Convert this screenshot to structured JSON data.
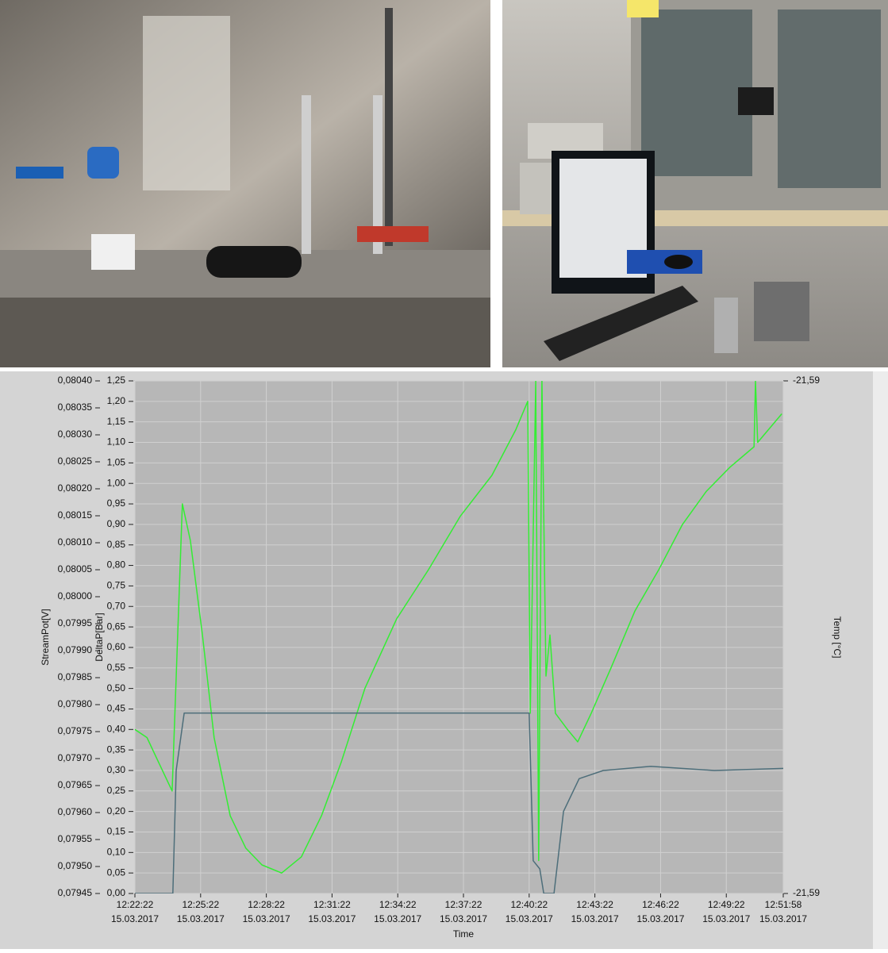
{
  "chart_data": {
    "type": "line",
    "xlabel": "Time",
    "ylabel": "StreamPot[V]",
    "y2label": "DeltaP[Bar]",
    "y3label": "Temp [°C]",
    "xlim": [
      "12:22:22",
      "12:51:58"
    ],
    "xticks": [
      {
        "value": "12:22:22",
        "date": "15.03.2017"
      },
      {
        "value": "12:25:22",
        "date": "15.03.2017"
      },
      {
        "value": "12:28:22",
        "date": "15.03.2017"
      },
      {
        "value": "12:31:22",
        "date": "15.03.2017"
      },
      {
        "value": "12:34:22",
        "date": "15.03.2017"
      },
      {
        "value": "12:37:22",
        "date": "15.03.2017"
      },
      {
        "value": "12:40:22",
        "date": "15.03.2017"
      },
      {
        "value": "12:43:22",
        "date": "15.03.2017"
      },
      {
        "value": "12:46:22",
        "date": "15.03.2017"
      },
      {
        "value": "12:49:22",
        "date": "15.03.2017"
      },
      {
        "value": "12:51:58",
        "date": "15.03.2017"
      }
    ],
    "ylim": [
      0.07945,
      0.0804
    ],
    "yticks": [
      {
        "value": 0.07945,
        "label": "0,07945"
      },
      {
        "value": 0.0795,
        "label": "0,07950"
      },
      {
        "value": 0.07955,
        "label": "0,07955"
      },
      {
        "value": 0.0796,
        "label": "0,07960"
      },
      {
        "value": 0.07965,
        "label": "0,07965"
      },
      {
        "value": 0.0797,
        "label": "0,07970"
      },
      {
        "value": 0.07975,
        "label": "0,07975"
      },
      {
        "value": 0.0798,
        "label": "0,07980"
      },
      {
        "value": 0.07985,
        "label": "0,07985"
      },
      {
        "value": 0.0799,
        "label": "0,07990"
      },
      {
        "value": 0.07995,
        "label": "0,07995"
      },
      {
        "value": 0.08,
        "label": "0,08000"
      },
      {
        "value": 0.08005,
        "label": "0,08005"
      },
      {
        "value": 0.0801,
        "label": "0,08010"
      },
      {
        "value": 0.08015,
        "label": "0,08015"
      },
      {
        "value": 0.0802,
        "label": "0,08020"
      },
      {
        "value": 0.08025,
        "label": "0,08025"
      },
      {
        "value": 0.0803,
        "label": "0,08030"
      },
      {
        "value": 0.08035,
        "label": "0,08035"
      },
      {
        "value": 0.0804,
        "label": "0,08040"
      }
    ],
    "y2lim": [
      0,
      1.25
    ],
    "y2ticks": [
      {
        "value": 0,
        "label": "0,00"
      },
      {
        "value": 0.05,
        "label": "0,05"
      },
      {
        "value": 0.1,
        "label": "0,10"
      },
      {
        "value": 0.15,
        "label": "0,15"
      },
      {
        "value": 0.2,
        "label": "0,20"
      },
      {
        "value": 0.25,
        "label": "0,25"
      },
      {
        "value": 0.3,
        "label": "0,30"
      },
      {
        "value": 0.35,
        "label": "0,35"
      },
      {
        "value": 0.4,
        "label": "0,40"
      },
      {
        "value": 0.45,
        "label": "0,45"
      },
      {
        "value": 0.5,
        "label": "0,50"
      },
      {
        "value": 0.55,
        "label": "0,55"
      },
      {
        "value": 0.6,
        "label": "0,60"
      },
      {
        "value": 0.65,
        "label": "0,65"
      },
      {
        "value": 0.7,
        "label": "0,70"
      },
      {
        "value": 0.75,
        "label": "0,75"
      },
      {
        "value": 0.8,
        "label": "0,80"
      },
      {
        "value": 0.85,
        "label": "0,85"
      },
      {
        "value": 0.9,
        "label": "0,90"
      },
      {
        "value": 0.95,
        "label": "0,95"
      },
      {
        "value": 1,
        "label": "1,00"
      },
      {
        "value": 1.05,
        "label": "1,05"
      },
      {
        "value": 1.1,
        "label": "1,10"
      },
      {
        "value": 1.15,
        "label": "1,15"
      },
      {
        "value": 1.2,
        "label": "1,20"
      },
      {
        "value": 1.25,
        "label": "1,25"
      }
    ],
    "y3lim": [
      -21.59,
      -21.59
    ],
    "y3ticks": [
      {
        "value": -21.59,
        "label": "-21,59"
      },
      {
        "value": -21.59,
        "label": "-21,59"
      }
    ],
    "grid": true,
    "series": [
      {
        "color": "#33ee33",
        "axis": "y",
        "x": [
          "12:22:22",
          "12:22:55",
          "12:23:27",
          "12:24:04",
          "12:24:32",
          "12:24:54",
          "12:25:27",
          "12:25:59",
          "12:26:43",
          "12:27:26",
          "12:28:10",
          "12:29:04",
          "12:29:58",
          "12:30:53",
          "12:31:47",
          "12:32:52",
          "12:34:19",
          "12:35:46",
          "12:37:13",
          "12:38:40",
          "12:39:45",
          "12:40:18",
          "12:40:25",
          "12:40:40",
          "12:40:48",
          "12:40:57",
          "12:41:08",
          "12:41:19",
          "12:41:34",
          "12:42:07",
          "12:42:35",
          "12:43:12",
          "12:44:06",
          "12:45:12",
          "12:46:17",
          "12:47:22",
          "12:48:27",
          "12:49:32",
          "12:50:38",
          "12:50:42",
          "12:50:48",
          "12:51:54"
        ],
        "values": [
          0.079754,
          0.079739,
          0.079693,
          0.07964,
          0.080172,
          0.080104,
          0.079929,
          0.079739,
          0.079594,
          0.079534,
          0.079503,
          0.079488,
          0.079518,
          0.079594,
          0.079693,
          0.07983,
          0.079959,
          0.08005,
          0.080149,
          0.080225,
          0.080309,
          0.080362,
          0.079784,
          0.0804,
          0.079511,
          0.0804,
          0.079853,
          0.079929,
          0.079784,
          0.079754,
          0.079731,
          0.079784,
          0.079868,
          0.079974,
          0.08005,
          0.080134,
          0.080195,
          0.08024,
          0.080278,
          0.0804,
          0.080286,
          0.080339
        ]
      },
      {
        "color": "#4d6e7a",
        "axis": "y2",
        "x": [
          "12:22:22",
          "12:24:06",
          "12:24:15",
          "12:24:37",
          "12:40:22",
          "12:40:33",
          "12:40:51",
          "12:41:02",
          "12:41:30",
          "12:41:56",
          "12:42:39",
          "12:43:45",
          "12:45:55",
          "12:48:49",
          "12:51:58"
        ],
        "values": [
          0,
          0,
          0.3,
          0.44,
          0.44,
          0.08,
          0.06,
          0,
          0,
          0.2,
          0.28,
          0.3,
          0.31,
          0.3,
          0.305
        ]
      }
    ]
  }
}
